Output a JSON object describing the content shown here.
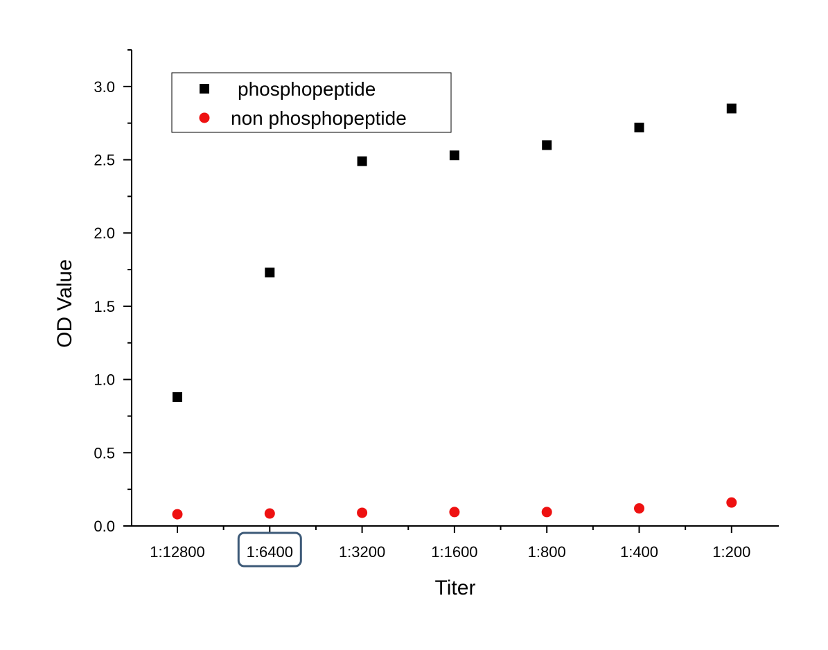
{
  "chart_data": {
    "type": "scatter",
    "categories": [
      "1:12800",
      "1:6400",
      "1:3200",
      "1:1600",
      "1:800",
      "1:400",
      "1:200"
    ],
    "series": [
      {
        "name": "phosphopeptide",
        "marker": "square",
        "color": "#000000",
        "values": [
          0.88,
          1.73,
          2.49,
          2.53,
          2.6,
          2.72,
          2.85
        ]
      },
      {
        "name": "non phosphopeptide",
        "marker": "circle",
        "color": "#ee1111",
        "values": [
          0.08,
          0.085,
          0.09,
          0.095,
          0.095,
          0.12,
          0.16
        ]
      }
    ],
    "xlabel": "Titer",
    "ylabel": "OD Value",
    "ylim": [
      0,
      3.25
    ],
    "yticks": [
      "0.0",
      "0.5",
      "1.0",
      "1.5",
      "2.0",
      "2.5",
      "3.0"
    ],
    "ytick_values": [
      0,
      0.5,
      1.0,
      1.5,
      2.0,
      2.5,
      3.0
    ],
    "grid": false,
    "legend_position": "top-left",
    "highlighted_category": "1:6400",
    "highlight_color": "#3d5a78"
  }
}
